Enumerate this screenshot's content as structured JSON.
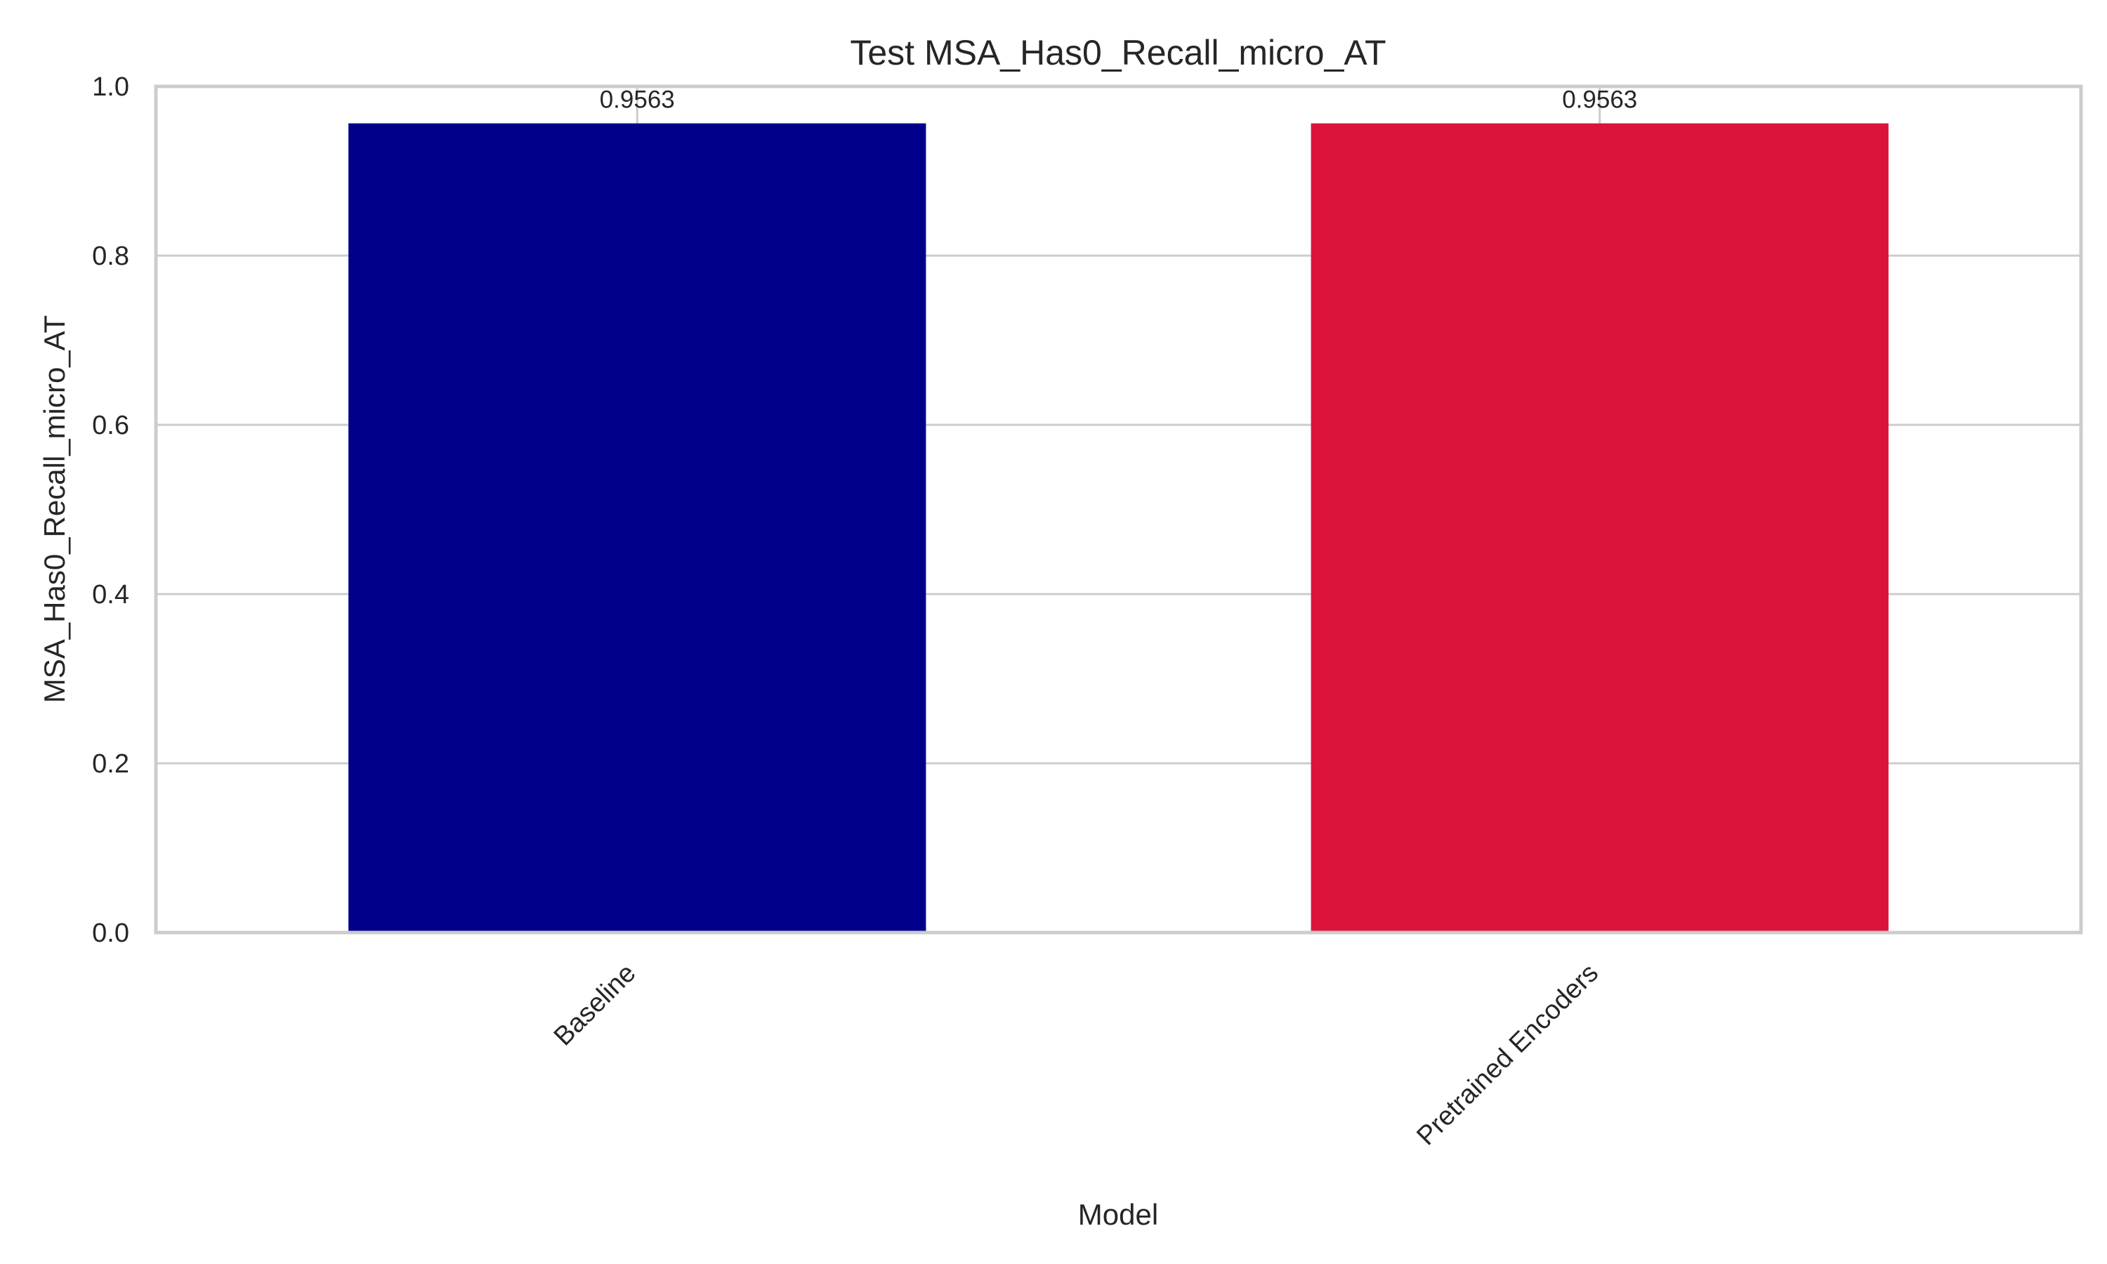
{
  "chart_data": {
    "type": "bar",
    "title": "Test MSA_Has0_Recall_micro_AT",
    "xlabel": "Model",
    "ylabel": "MSA_Has0_Recall_micro_AT",
    "categories": [
      "Baseline",
      "Pretrained Encoders"
    ],
    "values": [
      0.9563,
      0.9563
    ],
    "value_labels": [
      "0.9563",
      "0.9563"
    ],
    "colors": [
      "#00008b",
      "#dc143c"
    ],
    "ylim": [
      0,
      1.0
    ],
    "yticks": [
      0.0,
      0.2,
      0.4,
      0.6,
      0.8,
      1.0
    ],
    "ytick_labels": [
      "0.0",
      "0.2",
      "0.4",
      "0.6",
      "0.8",
      "1.0"
    ],
    "grid": true,
    "legend": "none"
  }
}
